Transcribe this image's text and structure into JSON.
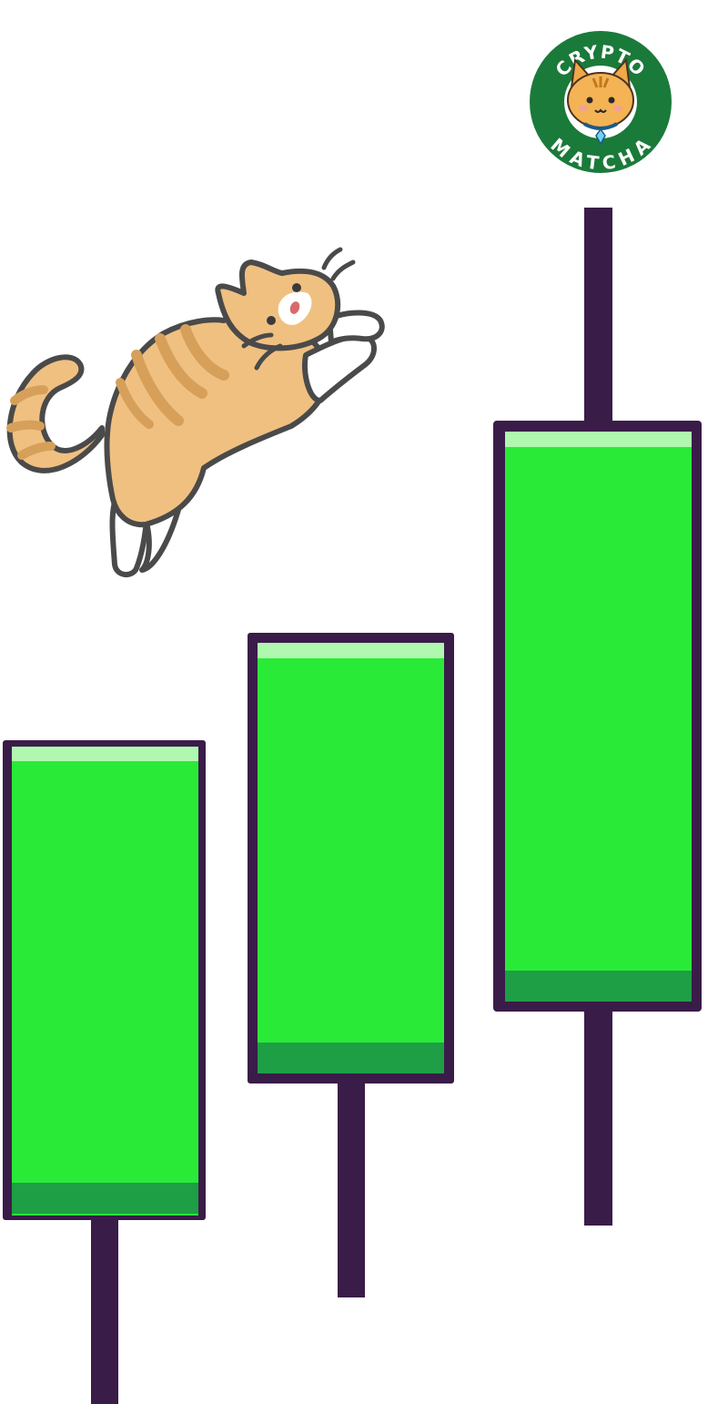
{
  "logo": {
    "text_top": "CRYPTO",
    "text_bottom": "MATCHA",
    "ring_color": "#1a7a3a",
    "border_color": "#ffffff"
  },
  "colors": {
    "candle_body": "#2aea38",
    "candle_highlight": "#b0f7b0",
    "candle_shadow": "#1e9e45",
    "candle_outline": "#3a1c48",
    "cat_fur": "#f0c081",
    "cat_stripes": "#d6a05a",
    "cat_outline": "#4a4a4a"
  },
  "illustration": {
    "character": "jumping-cat",
    "candles": 3,
    "trend": "up"
  }
}
